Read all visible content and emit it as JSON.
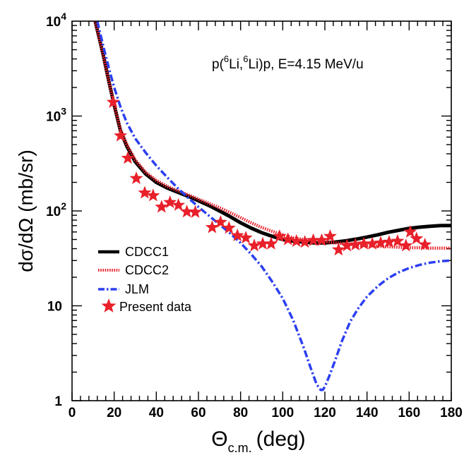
{
  "chart_data": {
    "type": "line",
    "annotation": {
      "pre": "p(",
      "sup1": "6",
      "mid1": "Li,",
      "sup2": "6",
      "mid2": "Li)p, E=4.15 MeV/u"
    },
    "xlabel": {
      "symbol": "Θ",
      "sub": "c.m.",
      "unit": "(deg)"
    },
    "ylabel": "dσ/dΩ (mb/sr)",
    "xlim": [
      0,
      180
    ],
    "ylim": [
      1,
      10000
    ],
    "yscale": "log",
    "x_ticks": [
      "0",
      "20",
      "40",
      "60",
      "80",
      "100",
      "120",
      "140",
      "160",
      "180"
    ],
    "y_ticks": [
      {
        "base": "1",
        "exp": ""
      },
      {
        "base": "10",
        "exp": ""
      },
      {
        "base": "10",
        "exp": "2"
      },
      {
        "base": "10",
        "exp": "3"
      },
      {
        "base": "10",
        "exp": "4"
      }
    ],
    "legend_position": "lower-left",
    "series": [
      {
        "name": "CDCC1",
        "style": "solid",
        "color": "#000000",
        "x": [
          11,
          13,
          15,
          17,
          20,
          23,
          26,
          30,
          35,
          40,
          45,
          50,
          55,
          60,
          65,
          70,
          75,
          80,
          85,
          90,
          95,
          100,
          105,
          110,
          115,
          120,
          125,
          130,
          135,
          140,
          145,
          150,
          155,
          160,
          165,
          170,
          175,
          180
        ],
        "y": [
          10000,
          6500,
          4200,
          2600,
          1300,
          700,
          480,
          330,
          245,
          200,
          175,
          158,
          143,
          128,
          114,
          100,
          87,
          75,
          66,
          59,
          54,
          50,
          48,
          47,
          46,
          46,
          47,
          48.5,
          50.5,
          53,
          56,
          59.5,
          62.5,
          65.5,
          67.5,
          69,
          70,
          70
        ]
      },
      {
        "name": "CDCC2",
        "style": "dotted",
        "color": "#e8202a",
        "x": [
          11,
          13,
          15,
          17,
          20,
          23,
          26,
          30,
          35,
          40,
          45,
          50,
          55,
          60,
          65,
          70,
          75,
          80,
          85,
          90,
          95,
          100,
          105,
          110,
          115,
          120,
          125,
          130,
          135,
          140,
          145,
          150,
          155,
          160,
          165,
          170,
          175,
          180
        ],
        "y": [
          10000,
          6500,
          4200,
          2600,
          1300,
          720,
          500,
          345,
          255,
          210,
          182,
          164,
          148,
          133,
          120,
          108,
          96,
          85,
          75,
          67,
          61,
          56,
          52,
          50,
          48.5,
          47.5,
          46,
          45,
          44,
          43,
          42.5,
          42,
          41.5,
          41,
          41,
          40.5,
          40.5,
          40.5
        ]
      },
      {
        "name": "JLM",
        "style": "dash-dot",
        "color": "#2b3ff0",
        "x": [
          12,
          14,
          16,
          18,
          20,
          23,
          26,
          30,
          35,
          40,
          45,
          50,
          55,
          60,
          65,
          70,
          75,
          80,
          85,
          90,
          95,
          100,
          105,
          110,
          113,
          116,
          118,
          119,
          120,
          122,
          125,
          128,
          132,
          136,
          140,
          145,
          150,
          155,
          160,
          165,
          170,
          175,
          180
        ],
        "y": [
          10000,
          6500,
          4300,
          2900,
          2000,
          1250,
          850,
          580,
          410,
          300,
          228,
          175,
          138,
          110,
          89,
          72,
          58,
          46,
          35,
          26,
          18,
          12,
          7,
          3.6,
          2.3,
          1.5,
          1.3,
          1.3,
          1.4,
          1.8,
          2.7,
          4.2,
          6.8,
          9.5,
          12.5,
          16,
          19.5,
          22.5,
          25,
          27,
          28.5,
          29.5,
          30
        ]
      },
      {
        "name": "Present data",
        "style": "markers",
        "marker": "star",
        "color": "#e8202a",
        "x": [
          19.5,
          23,
          26.5,
          30.5,
          34.5,
          38.5,
          42.5,
          46.5,
          50.5,
          54.5,
          58.5,
          66.5,
          70.5,
          74.5,
          78.5,
          82.5,
          86.5,
          90.5,
          94.5,
          98.5,
          102.5,
          106.5,
          110.5,
          114.5,
          118.5,
          122.5,
          126.5,
          130.5,
          134.5,
          138.5,
          142.5,
          146.5,
          150.5,
          154.5,
          158.5,
          160.5,
          163.5,
          167.5
        ],
        "y": [
          1400,
          620,
          360,
          220,
          155,
          145,
          110,
          123,
          115,
          98,
          97,
          67,
          76,
          66,
          55,
          52,
          43,
          45,
          45,
          54,
          50,
          48,
          47,
          49,
          49,
          54,
          39,
          43,
          44,
          45,
          45,
          46,
          47,
          48,
          43,
          60,
          51,
          44
        ]
      }
    ]
  }
}
